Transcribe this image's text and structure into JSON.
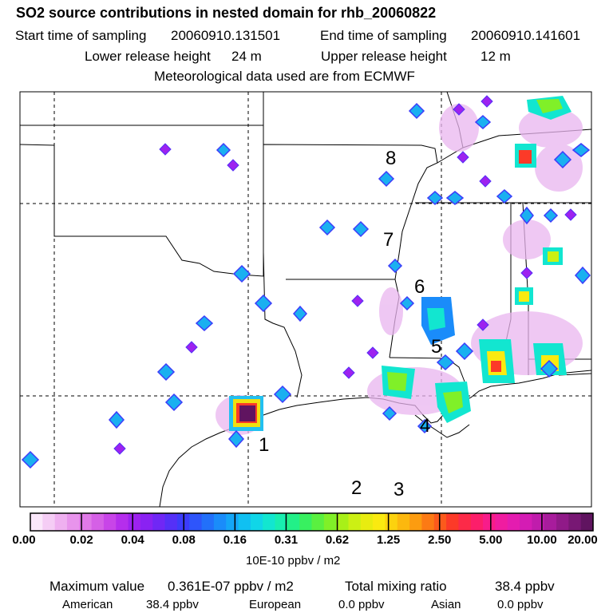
{
  "header": {
    "title": "SO2 source contributions in nested domain for rhb_20060822",
    "start_label": "Start time of sampling",
    "start_value": "20060910.131501",
    "end_label": "End time of sampling",
    "end_value": "20060910.141601",
    "lower_label": "Lower release height",
    "lower_value": "24 m",
    "upper_label": "Upper release height",
    "upper_value": "12 m",
    "met_note": "Meteorological data used are from ECMWF"
  },
  "map": {
    "track_labels": [
      "1",
      "2",
      "3",
      "4",
      "5",
      "6",
      "7",
      "8"
    ],
    "colors": {
      "state_border": "#000000",
      "coast": "#000000",
      "grid": "#000000"
    }
  },
  "colorbar": {
    "tick_labels": [
      "0.00",
      "0.02",
      "0.04",
      "0.08",
      "0.16",
      "0.31",
      "0.62",
      "1.25",
      "2.50",
      "5.00",
      "10.00",
      "20.00"
    ],
    "unit": "10E-10 ppbv / m2",
    "colors": [
      "#fbe8fb",
      "#f5cdf5",
      "#efb0f0",
      "#e894ec",
      "#e07ae8",
      "#d560e6",
      "#c845e8",
      "#b52eec",
      "#9d22ef",
      "#8a22f2",
      "#7027f5",
      "#5530f7",
      "#3c3cfa",
      "#2e55fb",
      "#2270fa",
      "#1a8cfa",
      "#14a6f7",
      "#10c0f2",
      "#10d6e8",
      "#12e6d0",
      "#18eeb0",
      "#22f088",
      "#38f060",
      "#5af040",
      "#80f028",
      "#a8f018",
      "#ccf014",
      "#e8ec10",
      "#faea10",
      "#fcd20e",
      "#fcb80e",
      "#fc9c10",
      "#fc7a14",
      "#fc5a1c",
      "#fc3a28",
      "#fc2a48",
      "#fc1e6a",
      "#f81c8a",
      "#f01ca0",
      "#e41cb0",
      "#d41cb4",
      "#c01cac",
      "#a81c9c",
      "#901a88",
      "#781874",
      "#601460"
    ]
  },
  "footer": {
    "max_label": "Maximum value",
    "max_value": "0.361E-07 ppbv / m2",
    "total_label": "Total mixing ratio",
    "total_value": "38.4 ppbv",
    "american_label": "American",
    "american_value": "38.4 ppbv",
    "european_label": "European",
    "european_value": "0.0 ppbv",
    "asian_label": "Asian",
    "asian_value": "0.0 ppbv"
  }
}
